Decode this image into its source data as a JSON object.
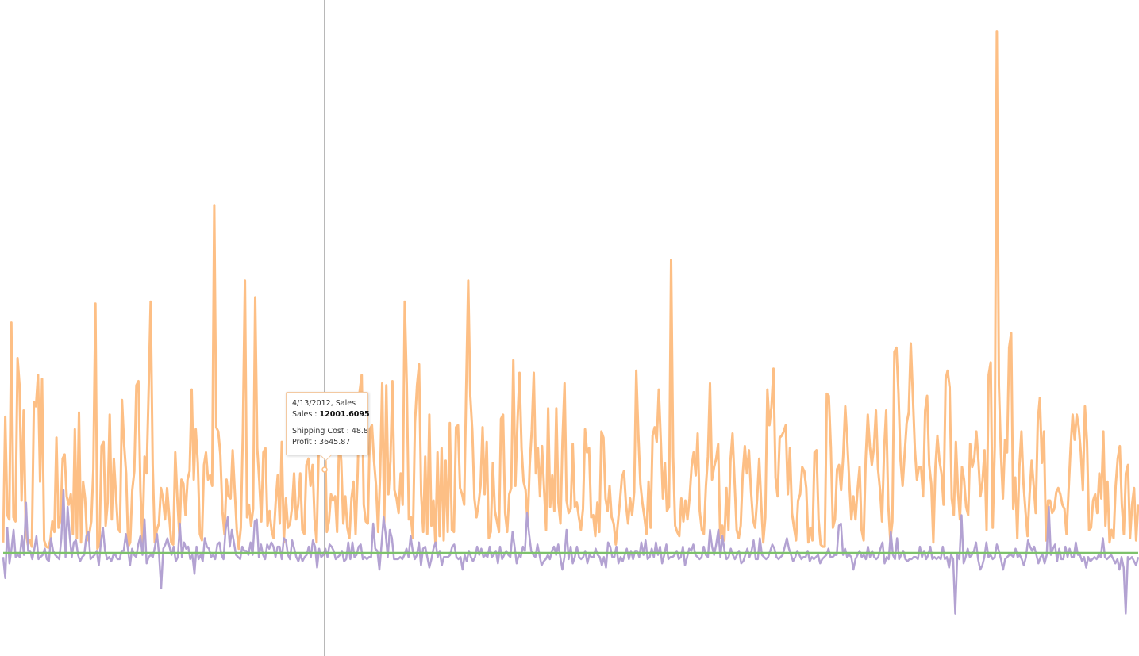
{
  "chart_data": {
    "type": "line",
    "title": "",
    "xlabel": "",
    "ylabel": "",
    "grid": false,
    "legend": "none",
    "x_start": "2012-01-01",
    "x_end": "2012-12-31",
    "ylim": [
      -3000,
      25000
    ],
    "series": [
      {
        "color": "#fdbf85",
        "values": [
          500,
          6500,
          1800,
          1600,
          11000,
          1700,
          1500,
          9300,
          8000,
          2500,
          6800,
          1200,
          400,
          600,
          300,
          7200,
          7000,
          8500,
          3400,
          8300,
          600,
          300,
          250,
          600,
          1500,
          1000,
          5500,
          1200,
          1600,
          4500,
          4700,
          2700,
          2300,
          2800,
          900,
          5900,
          700,
          6700,
          500,
          3400,
          2600,
          600,
          900,
          1500,
          4000,
          11900,
          200,
          400,
          5100,
          5300,
          1300,
          2400,
          6600,
          1600,
          4500,
          2800,
          1200,
          1000,
          7300,
          5200,
          3800,
          300,
          500,
          3000,
          3900,
          8000,
          8200,
          3000,
          500,
          4600,
          3800,
          7800,
          12000,
          4200,
          500,
          1100,
          1400,
          3100,
          2600,
          1600,
          3100,
          1800,
          500,
          400,
          4800,
          2600,
          800,
          3500,
          3300,
          1800,
          3500,
          3900,
          7800,
          3500,
          5900,
          4300,
          900,
          600,
          4200,
          4800,
          3500,
          3700,
          3200,
          16600,
          6000,
          5800,
          4700,
          2000,
          900,
          3500,
          2700,
          2600,
          4900,
          3000,
          1100,
          200,
          1200,
          5800,
          13000,
          1700,
          2300,
          1300,
          2100,
          12200,
          5000,
          3400,
          1500,
          4800,
          5000,
          1300,
          2000,
          1100,
          700,
          2400,
          3700,
          1400,
          5300,
          500,
          2600,
          1200,
          1400,
          2200,
          3800,
          1600,
          2300,
          3800,
          1100,
          900,
          4200,
          4500,
          3200,
          4200,
          1600,
          500,
          4900,
          6200,
          6900,
          6200,
          1000,
          1500,
          2800,
          2500,
          2700,
          1000,
          5500,
          4400,
          1400,
          2700,
          1200,
          700,
          2600,
          3400,
          900,
          3800,
          7700,
          8500,
          2300,
          1500,
          1400,
          5900,
          6100,
          4400,
          3200,
          1000,
          3700,
          8100,
          1400,
          8000,
          2800,
          4400,
          8200,
          3000,
          2600,
          1900,
          3800,
          2300,
          12000,
          8000,
          1600,
          1700,
          700,
          6200,
          8000,
          9000,
          2800,
          1000,
          4600,
          900,
          6600,
          1300,
          2500,
          400,
          4800,
          800,
          5000,
          600,
          4400,
          1000,
          6200,
          1100,
          1000,
          6000,
          6100,
          3100,
          2800,
          2300,
          8000,
          13000,
          7500,
          5800,
          2600,
          1700,
          2300,
          3200,
          6000,
          2800,
          5300,
          700,
          1000,
          4300,
          2000,
          1500,
          1000,
          6400,
          6600,
          1900,
          1000,
          2800,
          3100,
          9200,
          3200,
          6200,
          8600,
          5000,
          3400,
          3000,
          1300,
          4200,
          5900,
          8600,
          3800,
          5000,
          2700,
          5100,
          3100,
          1100,
          6900,
          2200,
          3700,
          2000,
          6900,
          2400,
          1400,
          5400,
          8100,
          2500,
          1900,
          2100,
          5200,
          2200,
          2400,
          1700,
          1100,
          2100,
          5900,
          4800,
          5000,
          1700,
          1800,
          800,
          2400,
          1000,
          5800,
          5500,
          2600,
          2000,
          3200,
          1700,
          1400,
          400,
          1400,
          2400,
          3600,
          3900,
          2300,
          1400,
          2600,
          1800,
          2900,
          8700,
          5700,
          3300,
          2400,
          1700,
          900,
          3400,
          1200,
          5600,
          6000,
          5300,
          7800,
          5300,
          2600,
          4300,
          2000,
          2200,
          14000,
          4600,
          1300,
          1000,
          800,
          2600,
          1500,
          2500,
          1600,
          2600,
          4100,
          4800,
          3700,
          5700,
          2000,
          1100,
          900,
          3200,
          4600,
          8100,
          3500,
          4100,
          4500,
          5200,
          700,
          1300,
          600,
          3100,
          1100,
          4400,
          5700,
          3400,
          1100,
          700,
          1300,
          3800,
          5100,
          3800,
          4900,
          3000,
          1600,
          1200,
          2600,
          4500,
          2300,
          500,
          1700,
          7800,
          6100,
          7000,
          8800,
          3600,
          2700,
          5500,
          5600,
          5800,
          6100,
          2800,
          5000,
          1900,
          1200,
          600,
          2500,
          2800,
          4100,
          3900,
          3100,
          500,
          1200,
          600,
          4800,
          4900,
          1600,
          400,
          300,
          300,
          7600,
          7500,
          5000,
          1200,
          1600,
          4000,
          4200,
          3000,
          4600,
          7000,
          5300,
          3400,
          1600,
          2700,
          1600,
          3000,
          4100,
          1100,
          600,
          4500,
          6600,
          5100,
          4200,
          5000,
          6800,
          4000,
          3000,
          1500,
          4900,
          6800,
          2300,
          600,
          1500,
          9600,
          9800,
          7600,
          4400,
          3200,
          4700,
          6200,
          6700,
          10000,
          7500,
          5000,
          3500,
          4100,
          4100,
          2700,
          6800,
          7500,
          4200,
          3300,
          500,
          4100,
          5600,
          4400,
          3800,
          2300,
          8300,
          8700,
          7900,
          2600,
          1800,
          5300,
          3000,
          1600,
          4100,
          3500,
          2200,
          1800,
          5200,
          4100,
          4500,
          5800,
          4400,
          2700,
          3400,
          4900,
          1100,
          8500,
          9100,
          1200,
          5100,
          24900,
          8000,
          4700,
          2600,
          5400,
          4800,
          9800,
          10500,
          2100,
          3600,
          700,
          4100,
          5800,
          3300,
          2000,
          800,
          2800,
          4400,
          3200,
          1900,
          6300,
          7400,
          4300,
          5800,
          600,
          2500,
          2500,
          1900,
          2100,
          2900,
          3100,
          2800,
          2300,
          2100,
          900,
          2900,
          5000,
          6600,
          5400,
          6600,
          6000,
          4800,
          3000,
          7000,
          5300,
          1100,
          1200,
          2500,
          2800,
          1900,
          3800,
          2600,
          5800,
          1300,
          3400,
          500,
          1100,
          700,
          3200,
          4500,
          5100,
          2300,
          900,
          3800,
          4200,
          700,
          2300,
          3100,
          600,
          2300
        ]
      },
      {
        "color": "#b3a2d2",
        "values": [
          -200,
          -1200,
          1200,
          -500,
          200,
          1100,
          -200,
          -100,
          -200,
          800,
          -100,
          2400,
          100,
          100,
          -300,
          200,
          800,
          -300,
          -200,
          -100,
          200,
          -300,
          -400,
          700,
          100,
          -100,
          -200,
          -300,
          700,
          3000,
          -200,
          2200,
          800,
          -200,
          500,
          600,
          -100,
          -400,
          -200,
          -100,
          800,
          1000,
          -300,
          -200,
          -100,
          100,
          -600,
          500,
          1200,
          100,
          -300,
          -200,
          -400,
          -100,
          -100,
          -300,
          -300,
          100,
          100,
          900,
          200,
          -600,
          200,
          -100,
          -200,
          400,
          800,
          -100,
          1600,
          -500,
          -200,
          -100,
          -200,
          300,
          900,
          -100,
          -1700,
          200,
          400,
          700,
          300,
          -100,
          300,
          -400,
          -200,
          1400,
          -200,
          500,
          200,
          300,
          -300,
          -100,
          -1000,
          300,
          -300,
          -100,
          -400,
          700,
          300,
          200,
          -200,
          -100,
          -300,
          400,
          500,
          -100,
          -300,
          1100,
          1700,
          300,
          1100,
          500,
          -100,
          -200,
          -300,
          300,
          100,
          100,
          -100,
          500,
          -100,
          1500,
          1600,
          -200,
          400,
          -100,
          -300,
          400,
          200,
          500,
          300,
          -200,
          300,
          300,
          -300,
          700,
          600,
          -100,
          -300,
          600,
          200,
          -200,
          -400,
          -100,
          -400,
          -200,
          -100,
          300,
          -200,
          600,
          300,
          -700,
          200,
          -200,
          -100,
          200,
          -200,
          400,
          300,
          100,
          -300,
          -200,
          -100,
          100,
          -400,
          -300,
          500,
          -300,
          500,
          -200,
          -100,
          300,
          400,
          -300,
          -200,
          -300,
          -200,
          -200,
          1400,
          200,
          100,
          -800,
          400,
          1700,
          900,
          -200,
          1100,
          700,
          -300,
          -300,
          -300,
          -200,
          -300,
          -100,
          200,
          -200,
          800,
          100,
          -300,
          -100,
          500,
          -600,
          200,
          300,
          -200,
          -700,
          -300,
          200,
          500,
          -200,
          100,
          -600,
          -200,
          -200,
          -200,
          -100,
          300,
          400,
          -200,
          -300,
          -200,
          -800,
          -100,
          -400,
          100,
          -200,
          -400,
          -200,
          300,
          -100,
          200,
          -200,
          -100,
          -200,
          300,
          -200,
          -100,
          100,
          -500,
          300,
          -300,
          -100,
          100,
          -100,
          -200,
          1000,
          300,
          -500,
          -100,
          -200,
          300,
          100,
          1900,
          900,
          100,
          -100,
          -200,
          400,
          -100,
          -600,
          -400,
          -300,
          -100,
          -300,
          100,
          300,
          -100,
          400,
          -200,
          -800,
          -200,
          1100,
          -300,
          300,
          -500,
          -200,
          300,
          -200,
          -300,
          -200,
          100,
          -500,
          -100,
          -200,
          -200,
          200,
          -100,
          -200,
          -600,
          -200,
          -700,
          500,
          300,
          -200,
          -200,
          300,
          -500,
          -200,
          -400,
          -100,
          200,
          -300,
          100,
          -300,
          100,
          100,
          -200,
          500,
          -100,
          600,
          -300,
          -200,
          200,
          -200,
          500,
          -100,
          300,
          -500,
          -100,
          400,
          -300,
          -200,
          -200,
          -100,
          100,
          -300,
          -200,
          300,
          -600,
          -200,
          200,
          100,
          400,
          -100,
          -200,
          -300,
          -200,
          300,
          -100,
          -200,
          1100,
          300,
          -100,
          400,
          1100,
          -200,
          800,
          100,
          -300,
          -200,
          200,
          -100,
          -300,
          -100,
          100,
          -500,
          -400,
          -100,
          200,
          -200,
          100,
          600,
          -300,
          -300,
          700,
          -100,
          -200,
          -300,
          -200,
          100,
          400,
          200,
          -200,
          -300,
          -200,
          -100,
          300,
          700,
          200,
          -100,
          -400,
          -200,
          100,
          -100,
          -300,
          -200,
          -200,
          100,
          -400,
          -200,
          -300,
          -200,
          -100,
          -500,
          -300,
          -200,
          -100,
          200,
          -200,
          -200,
          -100,
          -100,
          1300,
          1400,
          -100,
          200,
          -200,
          -100,
          -200,
          -800,
          -300,
          -100,
          100,
          -200,
          -100,
          -300,
          300,
          -200,
          100,
          -200,
          -300,
          -200,
          200,
          500,
          -500,
          -200,
          -300,
          1000,
          -100,
          -300,
          700,
          -300,
          -100,
          100,
          -300,
          -400,
          -300,
          -300,
          -200,
          -200,
          -300,
          300,
          -200,
          100,
          -300,
          -100,
          300,
          -300,
          -200,
          -300,
          -200,
          -300,
          300,
          -300,
          -200,
          -700,
          -100,
          -300,
          -2900,
          -100,
          -300,
          1800,
          -500,
          -200,
          200,
          -200,
          -100,
          100,
          500,
          -300,
          -800,
          -600,
          -200,
          500,
          -200,
          -100,
          -300,
          -200,
          400,
          100,
          -300,
          -800,
          -300,
          -200,
          -100,
          -100,
          -200,
          200,
          -200,
          -100,
          -300,
          -600,
          -200,
          600,
          300,
          100,
          300,
          -100,
          -500,
          -200,
          -100,
          -500,
          -100,
          2200,
          -100,
          200,
          400,
          -400,
          200,
          -300,
          -300,
          300,
          -200,
          200,
          -200,
          -200,
          500,
          -100,
          -100,
          -400,
          -200,
          -700,
          -200,
          -400,
          -300,
          -200,
          -300,
          -100,
          -200,
          700,
          -200,
          -300,
          -200,
          -100,
          -300,
          -500,
          -300,
          -800,
          -200,
          -700,
          -2900,
          -200,
          -300,
          -200,
          -400,
          -600,
          -200
        ]
      },
      {
        "color": "#7dc26b",
        "values": [
          0,
          0,
          0,
          0,
          0,
          0,
          0,
          0,
          0,
          0,
          0,
          0,
          0,
          0,
          0,
          0,
          0,
          0,
          0,
          0
        ]
      }
    ]
  },
  "crosshair": {
    "date": "4/13/2012"
  },
  "tooltip": {
    "header": "4/13/2012, Sales",
    "sales_label": "Sales : ",
    "sales_value": "12001.6095",
    "shipping": "Shipping Cost : 48.8",
    "profit": "Profit : 3645.87"
  }
}
